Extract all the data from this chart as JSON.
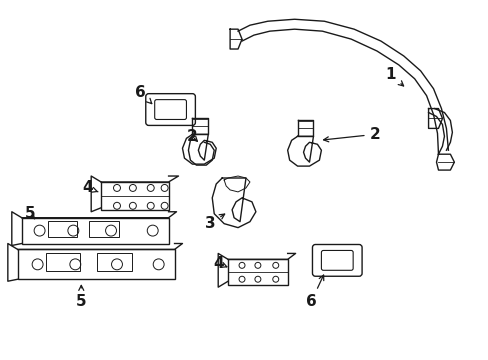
{
  "background_color": "#ffffff",
  "figure_width": 4.89,
  "figure_height": 3.6,
  "dpi": 100,
  "line_color": "#1a1a1a",
  "line_width": 1.0
}
